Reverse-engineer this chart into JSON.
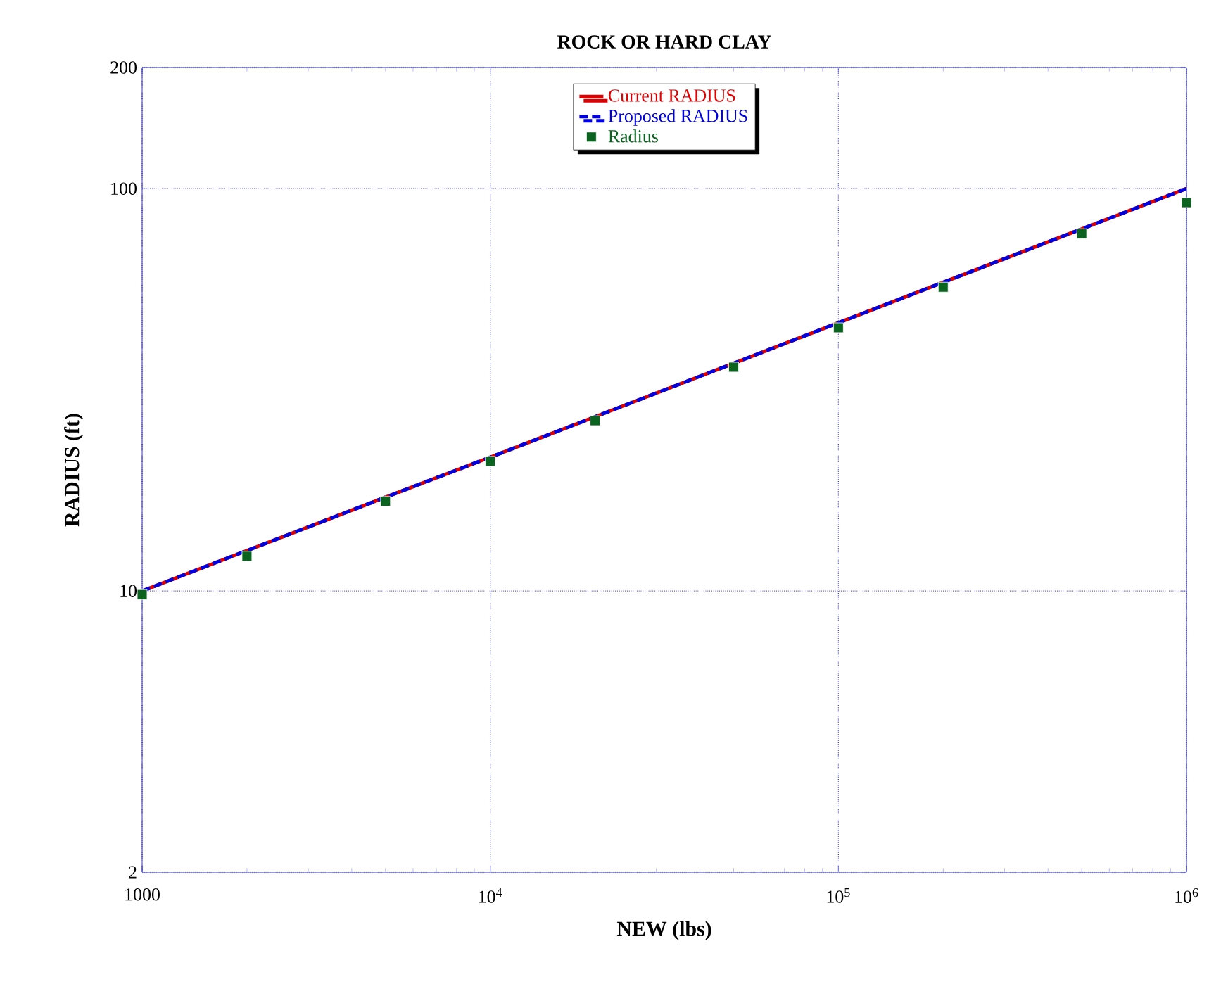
{
  "chart_data": {
    "type": "line",
    "title": "ROCK OR HARD CLAY",
    "xlabel": "NEW (lbs)",
    "ylabel": "RADIUS (ft)",
    "log": "xy",
    "grid": true,
    "legend": "top",
    "x": [
      1000,
      2000,
      5000,
      10000,
      20000,
      50000,
      100000,
      200000,
      500000,
      1000000
    ],
    "xlim": [
      1000,
      1000000
    ],
    "ylim": [
      2,
      200
    ],
    "xticks": [
      1000,
      {
        "value": 10000,
        "label": "10$^{4}$"
      },
      {
        "value": 100000,
        "label": "10$^{5}$"
      },
      {
        "value": 1000000,
        "label": "10$^{6}$"
      }
    ],
    "yticks": [
      2,
      10,
      100,
      200
    ],
    "series": [
      {
        "name": "Current RADIUS",
        "color": "#e00000",
        "line_style": "solid",
        "marker": "none",
        "values": [
          10,
          12.6,
          17.1,
          21.5,
          27.1,
          36.8,
          46.4,
          58.5,
          79.4,
          100
        ]
      },
      {
        "name": "Proposed RADIUS",
        "color": "#0000e0",
        "line_style": "dashed",
        "marker": "none",
        "values": [
          10,
          12.6,
          17.1,
          21.5,
          27.1,
          36.8,
          46.4,
          58.5,
          79.4,
          100
        ]
      },
      {
        "name": "Radius",
        "color": "#0a6420",
        "type": "scatter",
        "marker": "square",
        "values": [
          9.8,
          12.2,
          16.7,
          21,
          26.5,
          36,
          45.1,
          56.9,
          77.3,
          92.3
        ]
      }
    ]
  }
}
